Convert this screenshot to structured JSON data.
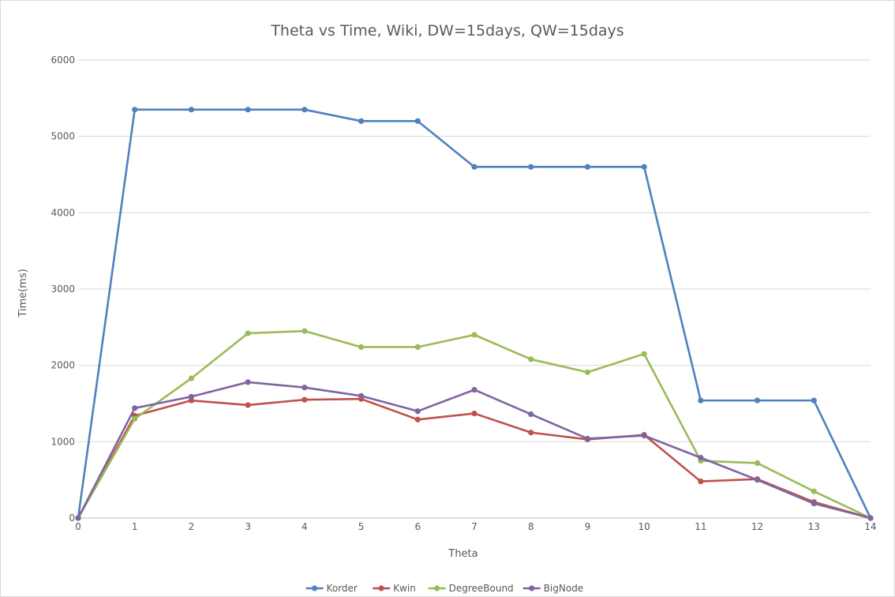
{
  "chart_data": {
    "type": "line",
    "title": "Theta vs Time, Wiki, DW=15days, QW=15days",
    "xlabel": "Theta",
    "ylabel": "Time(ms)",
    "x": [
      0,
      1,
      2,
      3,
      4,
      5,
      6,
      7,
      8,
      9,
      10,
      11,
      12,
      13,
      14
    ],
    "xlim": [
      0,
      14
    ],
    "ylim": [
      0,
      6000
    ],
    "yticks": [
      0,
      1000,
      2000,
      3000,
      4000,
      5000,
      6000
    ],
    "grid": "horizontal",
    "legend_position": "bottom",
    "series": [
      {
        "name": "Korder",
        "color": "#4F81BD",
        "values": [
          0,
          5350,
          5350,
          5350,
          5350,
          5200,
          5200,
          4600,
          4600,
          4600,
          4600,
          1540,
          1540,
          1540,
          0
        ]
      },
      {
        "name": "Kwin",
        "color": "#C0504D",
        "values": [
          0,
          1340,
          1540,
          1480,
          1550,
          1560,
          1290,
          1370,
          1120,
          1030,
          1090,
          480,
          510,
          210,
          0
        ]
      },
      {
        "name": "DegreeBound",
        "color": "#9BBB59",
        "values": [
          0,
          1300,
          1830,
          2420,
          2450,
          2240,
          2240,
          2400,
          2080,
          1910,
          2150,
          750,
          720,
          350,
          0
        ]
      },
      {
        "name": "BigNode",
        "color": "#8064A2",
        "values": [
          0,
          1440,
          1590,
          1780,
          1710,
          1600,
          1400,
          1680,
          1360,
          1040,
          1080,
          790,
          500,
          190,
          0
        ]
      }
    ]
  }
}
